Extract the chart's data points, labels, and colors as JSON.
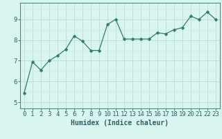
{
  "x": [
    0,
    1,
    2,
    3,
    4,
    5,
    6,
    7,
    8,
    9,
    10,
    11,
    12,
    13,
    14,
    15,
    16,
    17,
    18,
    19,
    20,
    21,
    22,
    23
  ],
  "y": [
    5.45,
    6.95,
    6.55,
    7.0,
    7.25,
    7.55,
    8.2,
    7.95,
    7.5,
    7.5,
    8.75,
    9.0,
    8.05,
    8.05,
    8.05,
    8.05,
    8.35,
    8.3,
    8.5,
    8.6,
    9.15,
    9.0,
    9.35,
    9.0
  ],
  "line_color": "#2d7d6e",
  "marker": "D",
  "marker_size": 2.5,
  "background_color": "#d8f5f0",
  "grid_color_major": "#b8d8d4",
  "grid_color_minor": "#cce8e4",
  "xlabel": "Humidex (Indice chaleur)",
  "xlabel_fontsize": 7,
  "ylabel_ticks": [
    5,
    6,
    7,
    8,
    9
  ],
  "xtick_labels": [
    "0",
    "1",
    "2",
    "3",
    "4",
    "5",
    "6",
    "7",
    "8",
    "9",
    "10",
    "11",
    "12",
    "13",
    "14",
    "15",
    "16",
    "17",
    "18",
    "19",
    "20",
    "21",
    "22",
    "23"
  ],
  "xlim": [
    -0.5,
    23.5
  ],
  "ylim": [
    4.7,
    9.8
  ],
  "tick_fontsize": 6.5,
  "axis_color": "#2d6060",
  "spine_color": "#4a8a80"
}
